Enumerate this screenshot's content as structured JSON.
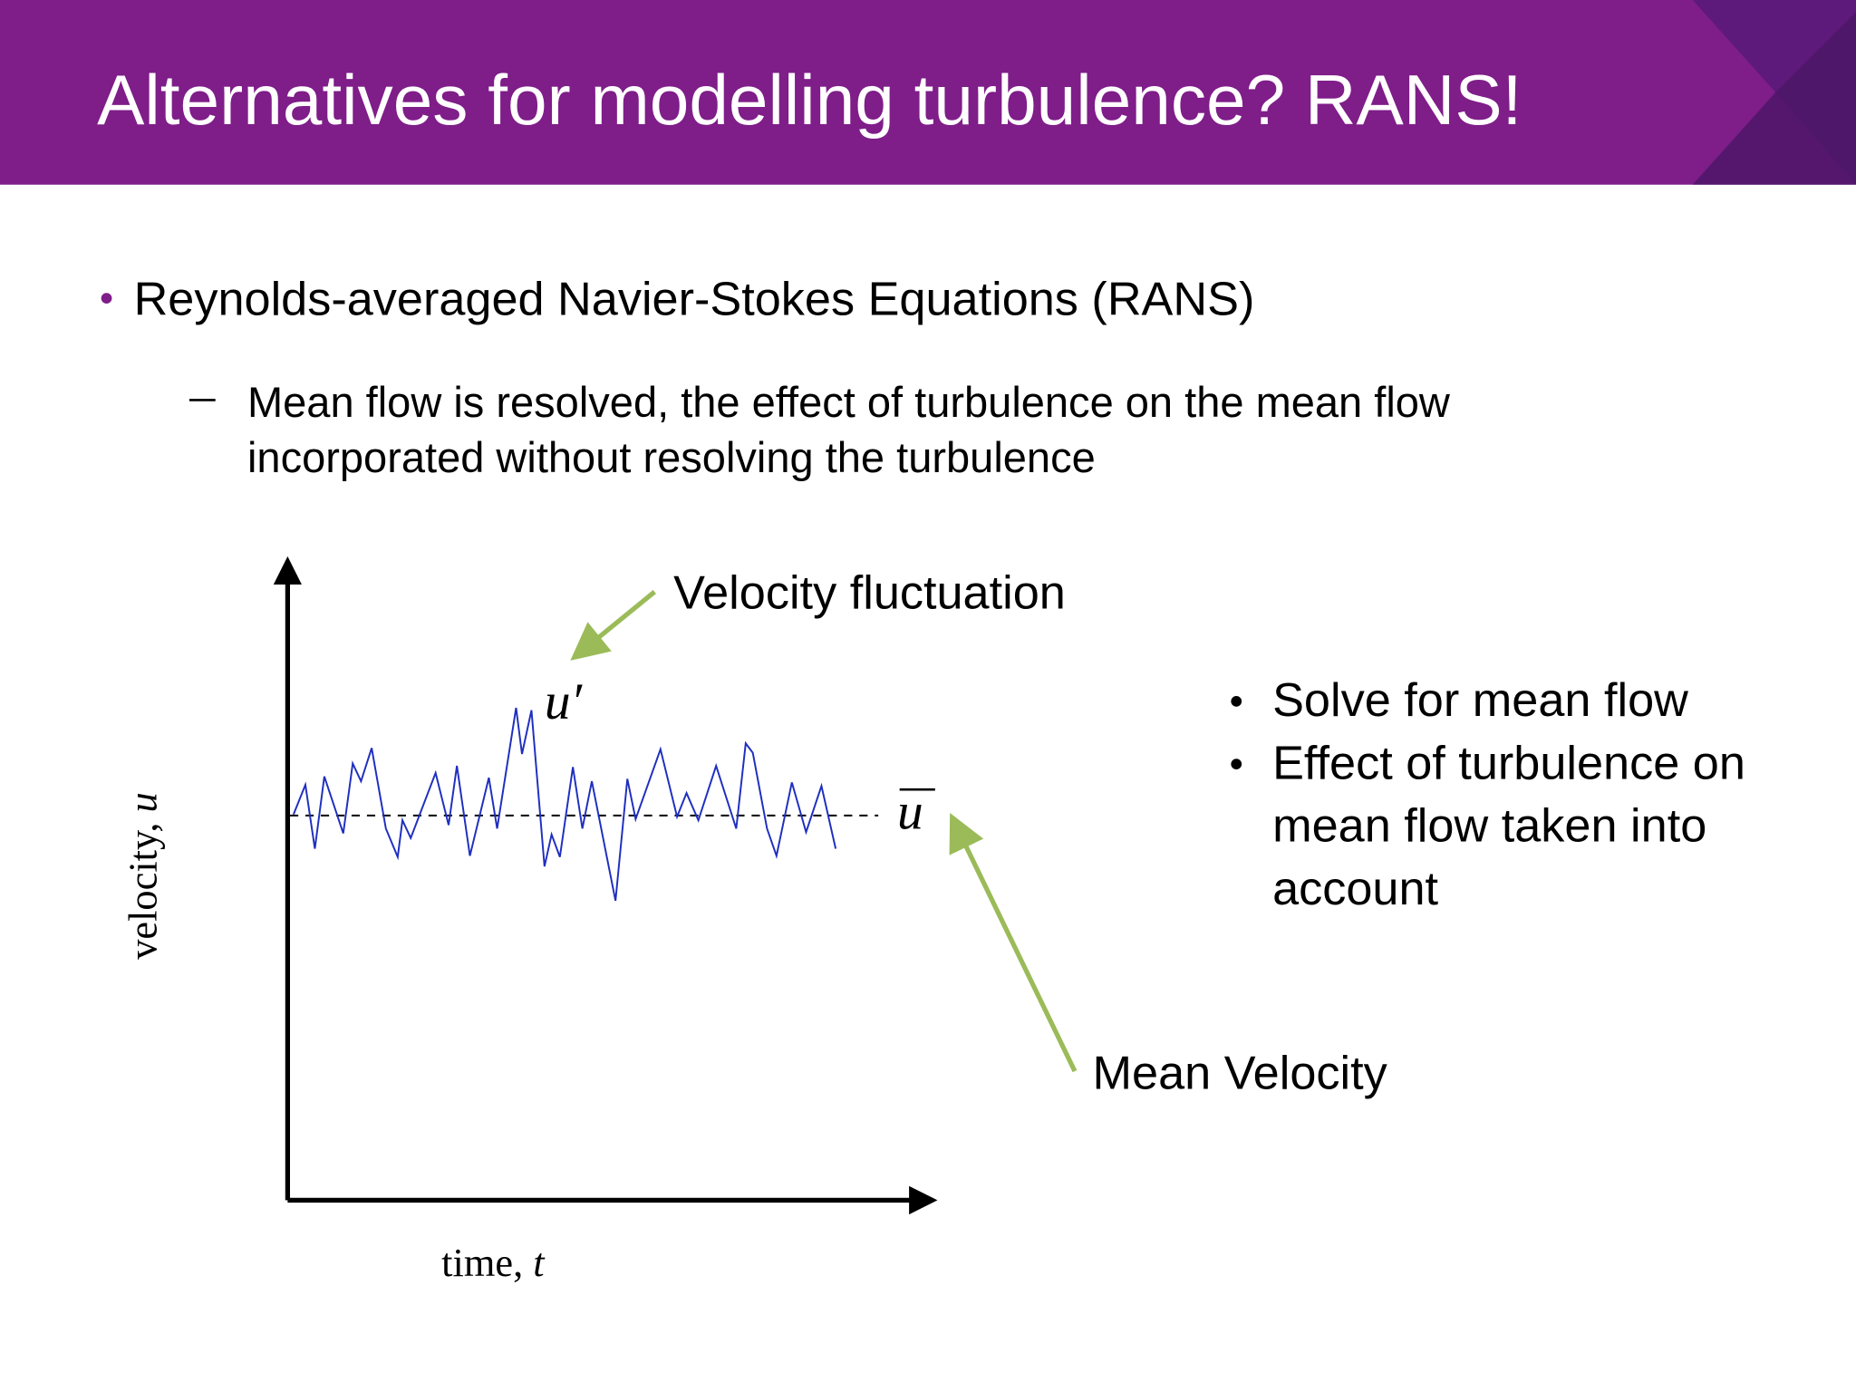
{
  "header": {
    "title": "Alternatives for modelling turbulence? RANS!"
  },
  "bullets": [
    {
      "text": "Reynolds-averaged Navier-Stokes Equations (RANS)",
      "sub": [
        "Mean flow is resolved, the effect of turbulence on the mean flow incorporated without resolving the turbulence"
      ]
    }
  ],
  "diagram": {
    "y_label": {
      "text": "velocity,",
      "var": "u"
    },
    "x_label": {
      "text": "time,",
      "var": "t"
    },
    "fluctuation_symbol": "u′",
    "mean_symbol": "u",
    "fluctuation_label": "Velocity fluctuation",
    "mean_label": "Mean Velocity"
  },
  "side_bullets": [
    "Solve for mean flow",
    "Effect of turbulence on mean flow taken into account"
  ]
}
